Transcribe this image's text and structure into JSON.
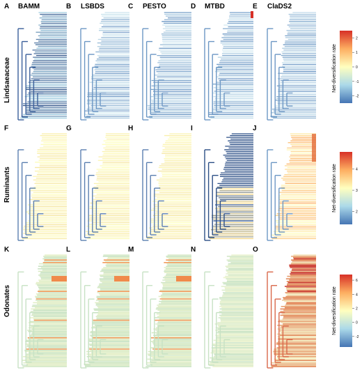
{
  "methods": [
    "BAMM",
    "LSBDS",
    "PESTO",
    "MTBD",
    "ClaDS2"
  ],
  "rows": [
    {
      "clade": "Lindsaeaceae",
      "panels": [
        "A",
        "B",
        "C",
        "D",
        "E"
      ],
      "colorbar": {
        "title": "Net-diversification rate",
        "ticks": [
          "2",
          "1",
          "0",
          "-1",
          "-2"
        ],
        "tick_values": [
          2,
          1,
          0,
          -1,
          -2
        ],
        "range": [
          -2.5,
          2.5
        ]
      },
      "tree_scheme": [
        "blue-dark",
        "light-blue",
        "light-blue",
        "light-blue-red-tip",
        "light-blue"
      ]
    },
    {
      "clade": "Ruminants",
      "panels": [
        "F",
        "G",
        "H",
        "I",
        "J"
      ],
      "colorbar": {
        "title": "Net-diversification rate",
        "ticks": [
          "4",
          "3",
          "2"
        ],
        "tick_values": [
          4,
          3,
          2
        ],
        "range": [
          1.4,
          4.8
        ]
      },
      "tree_scheme": [
        "yellow-blue",
        "yellow-blue",
        "yellow-blue",
        "blue-yellow",
        "orange-yellow"
      ]
    },
    {
      "clade": "Odonates",
      "panels": [
        "K",
        "L",
        "M",
        "N",
        "O"
      ],
      "colorbar": {
        "title": "Net-diversification rate",
        "ticks": [
          "6",
          "4",
          "2",
          "0",
          "-2"
        ],
        "tick_values": [
          6,
          4,
          2,
          0,
          -2
        ],
        "range": [
          -3.5,
          6.8
        ]
      },
      "tree_scheme": [
        "green-orange",
        "green-orange",
        "green-orange",
        "green-pale",
        "red-orange"
      ]
    }
  ],
  "colors": {
    "high": "#d73027",
    "mid_high": "#fdae61",
    "mid": "#ffffbf",
    "mid_low": "#abd9e9",
    "low": "#4575b4",
    "green_tint": "#c7e2c4"
  }
}
